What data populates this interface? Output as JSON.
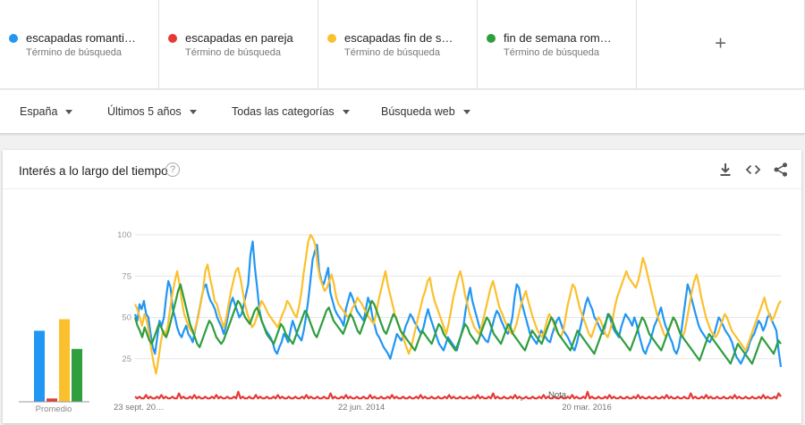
{
  "terms": [
    {
      "name": "escapadas romanti…",
      "sub": "Término de búsqueda",
      "color": "#2196f3"
    },
    {
      "name": "escapadas en pareja",
      "sub": "Término de búsqueda",
      "color": "#e53935"
    },
    {
      "name": "escapadas fin de s…",
      "sub": "Término de búsqueda",
      "color": "#fbc02d"
    },
    {
      "name": "fin de semana rom…",
      "sub": "Término de búsqueda",
      "color": "#2e9e3f"
    }
  ],
  "add_label": "+",
  "filters": {
    "region": "España",
    "time": "Últimos 5 años",
    "category": "Todas las categorías",
    "search_type": "Búsqueda web"
  },
  "card": {
    "title": "Interés a lo largo del tiempo",
    "help": "?"
  },
  "chart_data": {
    "type": "line",
    "ylim": [
      0,
      100
    ],
    "yticks": [
      "25",
      "50",
      "75",
      "100"
    ],
    "x_labels": [
      "23 sept. 20…",
      "22 jun. 2014",
      "20 mar. 2016"
    ],
    "note_label": "Nota",
    "average_label": "Promedio",
    "averages": [
      {
        "name": "escapadas romanti…",
        "value": 43,
        "color": "#2196f3"
      },
      {
        "name": "escapadas en pareja",
        "value": 2,
        "color": "#e53935"
      },
      {
        "name": "escapadas fin de s…",
        "value": 50,
        "color": "#fbc02d"
      },
      {
        "name": "fin de semana rom…",
        "value": 32,
        "color": "#2e9e3f"
      }
    ],
    "series": [
      {
        "name": "escapadas romanti…",
        "color": "#2196f3",
        "values": [
          52,
          48,
          58,
          55,
          60,
          52,
          50,
          40,
          32,
          28,
          38,
          48,
          45,
          50,
          62,
          72,
          68,
          55,
          50,
          44,
          40,
          38,
          42,
          45,
          40,
          38,
          35,
          42,
          48,
          55,
          62,
          68,
          70,
          64,
          60,
          58,
          55,
          50,
          47,
          44,
          40,
          45,
          52,
          58,
          62,
          58,
          54,
          50,
          52,
          58,
          64,
          70,
          88,
          96,
          80,
          68,
          55,
          48,
          45,
          42,
          40,
          38,
          35,
          30,
          28,
          32,
          35,
          40,
          38,
          35,
          42,
          48,
          44,
          40,
          38,
          36,
          42,
          50,
          60,
          72,
          85,
          90,
          94,
          78,
          72,
          70,
          75,
          80,
          65,
          60,
          55,
          52,
          50,
          48,
          45,
          55,
          60,
          65,
          62,
          58,
          54,
          52,
          50,
          48,
          55,
          62,
          58,
          50,
          45,
          40,
          38,
          35,
          32,
          30,
          28,
          25,
          30,
          35,
          40,
          38,
          36,
          40,
          45,
          48,
          52,
          50,
          47,
          45,
          42,
          40,
          44,
          50,
          55,
          50,
          46,
          42,
          38,
          34,
          32,
          30,
          34,
          38,
          36,
          34,
          32,
          30,
          35,
          40,
          45,
          55,
          62,
          68,
          60,
          55,
          50,
          45,
          40,
          38,
          36,
          35,
          40,
          45,
          50,
          54,
          52,
          48,
          45,
          42,
          40,
          44,
          50,
          62,
          70,
          68,
          60,
          55,
          50,
          45,
          40,
          38,
          36,
          34,
          38,
          42,
          40,
          38,
          36,
          35,
          40,
          44,
          48,
          50,
          46,
          42,
          40,
          38,
          35,
          32,
          30,
          34,
          40,
          46,
          52,
          58,
          62,
          58,
          55,
          50,
          48,
          45,
          42,
          40,
          46,
          52,
          50,
          45,
          42,
          40,
          38,
          44,
          48,
          52,
          50,
          48,
          45,
          50,
          46,
          40,
          35,
          30,
          28,
          32,
          35,
          40,
          45,
          48,
          52,
          56,
          50,
          45,
          42,
          38,
          35,
          30,
          28,
          32,
          40,
          50,
          60,
          70,
          66,
          60,
          55,
          50,
          45,
          42,
          40,
          38,
          36,
          35,
          38,
          40,
          45,
          50,
          48,
          45,
          42,
          40,
          38,
          35,
          30,
          26,
          24,
          22,
          25,
          28,
          30,
          35,
          38,
          40,
          44,
          48,
          46,
          42,
          45,
          50,
          52,
          48,
          45,
          42,
          30,
          20
        ]
      },
      {
        "name": "escapadas en pareja",
        "color": "#e53935",
        "values": [
          2,
          1,
          2,
          1,
          1,
          3,
          1,
          2,
          1,
          1,
          2,
          1,
          3,
          1,
          2,
          1,
          1,
          2,
          1,
          1,
          4,
          1,
          2,
          1,
          1,
          2,
          1,
          3,
          1,
          2,
          1,
          1,
          2,
          1,
          1,
          2,
          1,
          3,
          1,
          2,
          1,
          1,
          2,
          1,
          1,
          2,
          1,
          5,
          1,
          2,
          1,
          1,
          2,
          1,
          1,
          3,
          1,
          2,
          1,
          1,
          2,
          1,
          1,
          2,
          1,
          3,
          1,
          2,
          1,
          1,
          2,
          1,
          1,
          2,
          1,
          1,
          2,
          1,
          3,
          1,
          2,
          1,
          1,
          2,
          1,
          1,
          2,
          1,
          1,
          4,
          1,
          2,
          1,
          1,
          2,
          1,
          3,
          1,
          2,
          1,
          1,
          2,
          1,
          1,
          2,
          1,
          1,
          3,
          1,
          2,
          1,
          1,
          2,
          1,
          1,
          2,
          1,
          3,
          1,
          2,
          1,
          1,
          2,
          1,
          1,
          2,
          1,
          1,
          2,
          1,
          3,
          1,
          2,
          1,
          1,
          2,
          1,
          1,
          2,
          1,
          1,
          2,
          1,
          3,
          1,
          2,
          1,
          1,
          2,
          1,
          1,
          2,
          1,
          1,
          2,
          1,
          3,
          1,
          2,
          1,
          1,
          2,
          1,
          4,
          1,
          2,
          1,
          1,
          2,
          1,
          1,
          2,
          1,
          3,
          1,
          2,
          1,
          1,
          2,
          1,
          1,
          2,
          1,
          1,
          2,
          1,
          3,
          1,
          2,
          1,
          1,
          2,
          1,
          1,
          2,
          1,
          1,
          2,
          1,
          3,
          1,
          2,
          1,
          1,
          2,
          1,
          5,
          1,
          2,
          1,
          1,
          2,
          1,
          1,
          2,
          1,
          3,
          1,
          2,
          1,
          1,
          2,
          1,
          1,
          2,
          1,
          1,
          2,
          1,
          3,
          1,
          2,
          1,
          1,
          2,
          1,
          1,
          2,
          1,
          1,
          2,
          1,
          3,
          1,
          2,
          1,
          1,
          2,
          1,
          1,
          2,
          1,
          1,
          4,
          1,
          2,
          1,
          1,
          2,
          1,
          3,
          1,
          2,
          1,
          1,
          2,
          1,
          1,
          2,
          1,
          1,
          2,
          1,
          3,
          1,
          2,
          1,
          1,
          2,
          1,
          1,
          2,
          1,
          1,
          2,
          1,
          3,
          1,
          2,
          1,
          1,
          2,
          1,
          4,
          2
        ]
      },
      {
        "name": "escapadas fin de s…",
        "color": "#fbc02d",
        "values": [
          58,
          55,
          50,
          45,
          52,
          48,
          40,
          30,
          22,
          16,
          25,
          35,
          42,
          40,
          45,
          55,
          65,
          72,
          78,
          70,
          60,
          52,
          48,
          44,
          42,
          40,
          45,
          50,
          58,
          66,
          78,
          82,
          74,
          68,
          60,
          58,
          52,
          48,
          44,
          50,
          58,
          66,
          72,
          78,
          80,
          74,
          66,
          58,
          52,
          48,
          44,
          46,
          50,
          55,
          60,
          58,
          55,
          52,
          50,
          48,
          46,
          44,
          48,
          52,
          55,
          60,
          58,
          55,
          52,
          50,
          56,
          64,
          76,
          86,
          96,
          100,
          98,
          94,
          82,
          74,
          70,
          66,
          68,
          72,
          76,
          70,
          62,
          58,
          56,
          54,
          52,
          50,
          52,
          56,
          58,
          62,
          60,
          58,
          55,
          52,
          50,
          48,
          46,
          52,
          60,
          66,
          72,
          78,
          70,
          64,
          58,
          52,
          48,
          44,
          40,
          36,
          32,
          28,
          32,
          38,
          44,
          50,
          56,
          62,
          66,
          72,
          74,
          66,
          60,
          56,
          52,
          48,
          44,
          40,
          46,
          54,
          62,
          68,
          74,
          78,
          72,
          64,
          58,
          52,
          48,
          44,
          42,
          40,
          44,
          50,
          56,
          62,
          68,
          72,
          66,
          60,
          55,
          52,
          48,
          45,
          42,
          40,
          42,
          46,
          52,
          58,
          62,
          66,
          60,
          55,
          50,
          46,
          42,
          40,
          38,
          42,
          48,
          52,
          50,
          46,
          42,
          40,
          38,
          42,
          50,
          58,
          64,
          70,
          68,
          62,
          56,
          52,
          48,
          44,
          40,
          38,
          42,
          46,
          50,
          48,
          44,
          40,
          38,
          42,
          48,
          56,
          62,
          66,
          70,
          74,
          78,
          74,
          72,
          70,
          68,
          72,
          78,
          86,
          82,
          76,
          70,
          64,
          58,
          52,
          48,
          44,
          40,
          38,
          42,
          46,
          50,
          48,
          44,
          40,
          38,
          42,
          50,
          58,
          66,
          72,
          76,
          70,
          62,
          56,
          50,
          46,
          42,
          40,
          38,
          40,
          44,
          48,
          52,
          50,
          46,
          42,
          40,
          38,
          36,
          34,
          32,
          30,
          34,
          38,
          42,
          46,
          50,
          54,
          58,
          62,
          56,
          52,
          48,
          50,
          54,
          58,
          60
        ]
      },
      {
        "name": "fin de semana rom…",
        "color": "#2e9e3f",
        "values": [
          50,
          45,
          42,
          38,
          44,
          40,
          36,
          34,
          38,
          42,
          46,
          44,
          40,
          38,
          42,
          48,
          54,
          60,
          66,
          70,
          64,
          58,
          52,
          46,
          42,
          38,
          34,
          32,
          36,
          40,
          44,
          48,
          46,
          42,
          38,
          36,
          34,
          36,
          40,
          44,
          48,
          52,
          56,
          60,
          58,
          54,
          50,
          48,
          46,
          50,
          54,
          56,
          52,
          48,
          44,
          40,
          38,
          36,
          34,
          38,
          42,
          46,
          44,
          40,
          38,
          36,
          34,
          38,
          42,
          46,
          50,
          54,
          52,
          48,
          44,
          40,
          38,
          42,
          46,
          50,
          54,
          56,
          52,
          48,
          46,
          44,
          42,
          40,
          44,
          48,
          52,
          50,
          46,
          42,
          40,
          44,
          48,
          52,
          56,
          60,
          58,
          54,
          50,
          46,
          42,
          40,
          44,
          48,
          52,
          50,
          46,
          42,
          40,
          38,
          36,
          34,
          32,
          30,
          34,
          38,
          42,
          40,
          38,
          36,
          34,
          38,
          42,
          46,
          44,
          40,
          38,
          36,
          34,
          32,
          30,
          34,
          38,
          42,
          46,
          44,
          40,
          38,
          36,
          34,
          38,
          42,
          46,
          50,
          48,
          44,
          40,
          38,
          36,
          34,
          38,
          42,
          46,
          44,
          40,
          38,
          36,
          34,
          32,
          30,
          34,
          38,
          42,
          40,
          38,
          36,
          34,
          38,
          42,
          46,
          50,
          48,
          44,
          40,
          38,
          36,
          34,
          32,
          30,
          34,
          38,
          42,
          40,
          38,
          36,
          34,
          32,
          30,
          28,
          32,
          36,
          40,
          44,
          48,
          52,
          50,
          46,
          42,
          40,
          38,
          36,
          34,
          32,
          30,
          34,
          38,
          42,
          46,
          50,
          48,
          44,
          40,
          38,
          36,
          34,
          32,
          30,
          34,
          38,
          42,
          46,
          50,
          48,
          44,
          40,
          38,
          36,
          34,
          32,
          30,
          28,
          26,
          24,
          28,
          32,
          36,
          40,
          38,
          36,
          34,
          32,
          30,
          28,
          26,
          24,
          22,
          26,
          30,
          34,
          32,
          30,
          28,
          26,
          24,
          22,
          26,
          30,
          34,
          38,
          36,
          34,
          32,
          30,
          28,
          32,
          36,
          34
        ]
      }
    ]
  }
}
